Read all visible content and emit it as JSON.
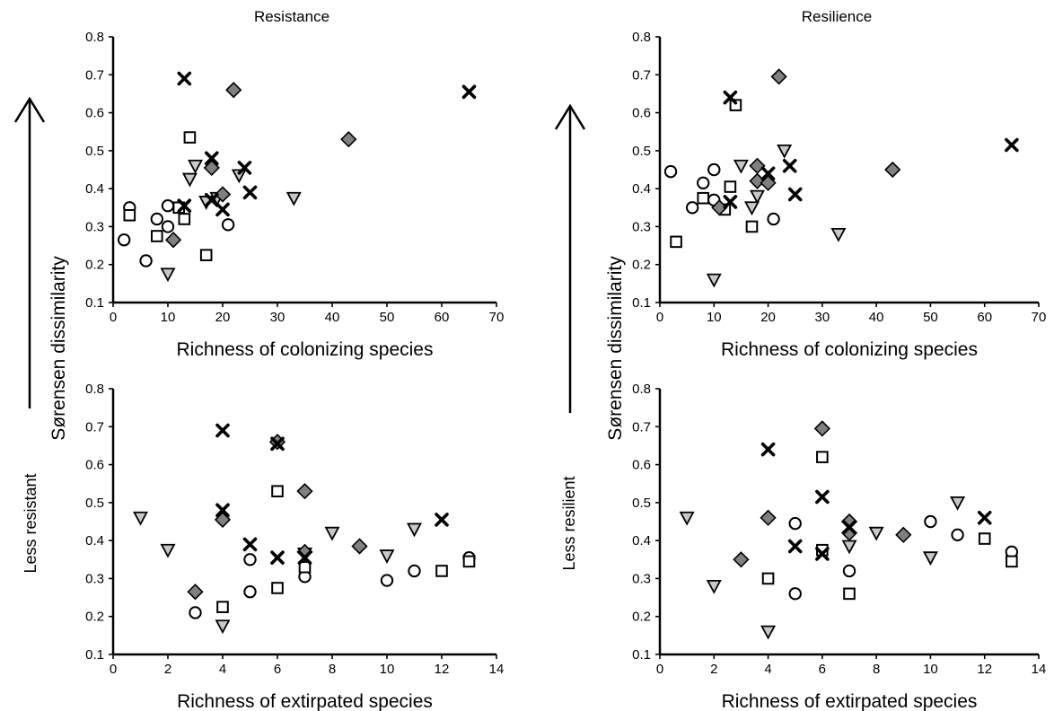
{
  "left_title": "Resistance",
  "right_title": "Resilience",
  "shared_ylabel": "Sørensen dissimilarity",
  "side_labels": {
    "left": "Less resistant",
    "right": "Less resilient"
  },
  "colors": {
    "diamond_fill": "#808080",
    "triangle_fill": "#c8c8c8",
    "marker_stroke": "#000000",
    "open_fill": "#ffffff"
  },
  "marker_types": [
    "circle-open",
    "square-open",
    "triangle-down-light",
    "diamond-gray",
    "x-bold"
  ],
  "chart_data": [
    {
      "type": "scatter",
      "title": "Resistance",
      "xlabel": "Richness of colonizing species",
      "ylabel": "Sørensen dissimilarity",
      "xlim": [
        0,
        70
      ],
      "ylim": [
        0.1,
        0.8
      ],
      "xticks": [
        0,
        10,
        20,
        30,
        40,
        50,
        60,
        70
      ],
      "yticks": [
        0.1,
        0.2,
        0.3,
        0.4,
        0.5,
        0.6,
        0.7,
        0.8
      ],
      "series": [
        {
          "marker": "circle-open",
          "x": [
            2,
            3,
            6,
            8,
            10,
            10,
            21
          ],
          "y": [
            0.265,
            0.35,
            0.21,
            0.32,
            0.355,
            0.3,
            0.305
          ]
        },
        {
          "marker": "square-open",
          "x": [
            3,
            8,
            12,
            13,
            14,
            17
          ],
          "y": [
            0.33,
            0.275,
            0.35,
            0.32,
            0.535,
            0.225
          ]
        },
        {
          "marker": "triangle-down-light",
          "x": [
            10,
            14,
            15,
            17,
            19,
            23,
            33
          ],
          "y": [
            0.175,
            0.425,
            0.46,
            0.365,
            0.375,
            0.435,
            0.375
          ]
        },
        {
          "marker": "diamond-gray",
          "x": [
            11,
            18,
            20,
            22,
            43
          ],
          "y": [
            0.265,
            0.455,
            0.385,
            0.66,
            0.53
          ]
        },
        {
          "marker": "x-bold",
          "x": [
            13,
            13,
            18,
            18,
            20,
            24,
            25,
            65
          ],
          "y": [
            0.69,
            0.355,
            0.48,
            0.37,
            0.345,
            0.455,
            0.39,
            0.655
          ]
        }
      ]
    },
    {
      "type": "scatter",
      "title": "Resilience",
      "xlabel": "Richness of colonizing species",
      "ylabel": "Sørensen dissimilarity",
      "xlim": [
        0,
        70
      ],
      "ylim": [
        0.1,
        0.8
      ],
      "xticks": [
        0,
        10,
        20,
        30,
        40,
        50,
        60,
        70
      ],
      "yticks": [
        0.1,
        0.2,
        0.3,
        0.4,
        0.5,
        0.6,
        0.7,
        0.8
      ],
      "series": [
        {
          "marker": "circle-open",
          "x": [
            2,
            6,
            8,
            10,
            10,
            21
          ],
          "y": [
            0.445,
            0.35,
            0.415,
            0.45,
            0.37,
            0.32
          ]
        },
        {
          "marker": "square-open",
          "x": [
            3,
            8,
            12,
            13,
            14,
            17
          ],
          "y": [
            0.26,
            0.375,
            0.345,
            0.405,
            0.62,
            0.3
          ]
        },
        {
          "marker": "triangle-down-light",
          "x": [
            10,
            15,
            17,
            18,
            23,
            33
          ],
          "y": [
            0.16,
            0.46,
            0.35,
            0.38,
            0.5,
            0.28
          ]
        },
        {
          "marker": "diamond-gray",
          "x": [
            11,
            18,
            18,
            20,
            22,
            43
          ],
          "y": [
            0.35,
            0.46,
            0.42,
            0.415,
            0.695,
            0.45
          ]
        },
        {
          "marker": "x-bold",
          "x": [
            13,
            13,
            20,
            24,
            25,
            65
          ],
          "y": [
            0.64,
            0.365,
            0.44,
            0.46,
            0.385,
            0.515
          ]
        }
      ]
    },
    {
      "type": "scatter",
      "title": "",
      "xlabel": "Richness of extirpated species",
      "ylabel": "Sørensen dissimilarity",
      "xlim": [
        0,
        14
      ],
      "ylim": [
        0.1,
        0.8
      ],
      "xticks": [
        0,
        2,
        4,
        6,
        8,
        10,
        12,
        14
      ],
      "yticks": [
        0.1,
        0.2,
        0.3,
        0.4,
        0.5,
        0.6,
        0.7,
        0.8
      ],
      "series": [
        {
          "marker": "circle-open",
          "x": [
            3,
            5,
            5,
            7,
            10,
            11,
            13
          ],
          "y": [
            0.21,
            0.265,
            0.35,
            0.305,
            0.295,
            0.32,
            0.355
          ]
        },
        {
          "marker": "square-open",
          "x": [
            4,
            6,
            6,
            7,
            12,
            13
          ],
          "y": [
            0.225,
            0.275,
            0.53,
            0.33,
            0.32,
            0.345
          ]
        },
        {
          "marker": "triangle-down-light",
          "x": [
            1,
            2,
            4,
            7,
            8,
            10,
            11
          ],
          "y": [
            0.46,
            0.375,
            0.175,
            0.365,
            0.42,
            0.36,
            0.43
          ]
        },
        {
          "marker": "diamond-gray",
          "x": [
            3,
            4,
            6,
            7,
            7,
            9
          ],
          "y": [
            0.265,
            0.455,
            0.66,
            0.53,
            0.37,
            0.385
          ]
        },
        {
          "marker": "x-bold",
          "x": [
            4,
            4,
            5,
            6,
            6,
            7,
            12
          ],
          "y": [
            0.69,
            0.48,
            0.39,
            0.655,
            0.355,
            0.355,
            0.455
          ]
        }
      ]
    },
    {
      "type": "scatter",
      "title": "",
      "xlabel": "Richness of extirpated species",
      "ylabel": "Sørensen dissimilarity",
      "xlim": [
        0,
        14
      ],
      "ylim": [
        0.1,
        0.8
      ],
      "xticks": [
        0,
        2,
        4,
        6,
        8,
        10,
        12,
        14
      ],
      "yticks": [
        0.1,
        0.2,
        0.3,
        0.4,
        0.5,
        0.6,
        0.7,
        0.8
      ],
      "series": [
        {
          "marker": "circle-open",
          "x": [
            5,
            5,
            7,
            10,
            11,
            13
          ],
          "y": [
            0.26,
            0.445,
            0.32,
            0.45,
            0.415,
            0.37
          ]
        },
        {
          "marker": "square-open",
          "x": [
            4,
            6,
            6,
            7,
            12,
            13
          ],
          "y": [
            0.3,
            0.62,
            0.375,
            0.26,
            0.405,
            0.345
          ]
        },
        {
          "marker": "triangle-down-light",
          "x": [
            1,
            2,
            4,
            7,
            8,
            10,
            11
          ],
          "y": [
            0.46,
            0.28,
            0.16,
            0.385,
            0.42,
            0.355,
            0.5
          ]
        },
        {
          "marker": "diamond-gray",
          "x": [
            3,
            4,
            6,
            7,
            7,
            9
          ],
          "y": [
            0.35,
            0.46,
            0.695,
            0.45,
            0.42,
            0.415
          ]
        },
        {
          "marker": "x-bold",
          "x": [
            4,
            5,
            6,
            6,
            7,
            12
          ],
          "y": [
            0.64,
            0.385,
            0.515,
            0.365,
            0.435,
            0.46
          ]
        }
      ]
    }
  ]
}
